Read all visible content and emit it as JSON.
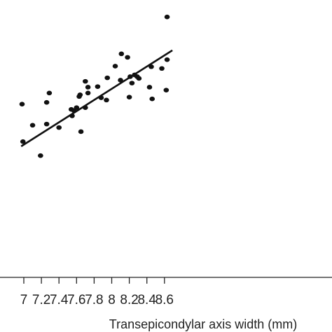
{
  "chart_data": {
    "type": "scatter",
    "title": "",
    "xlabel": "Transepicondylar axis width (mm)",
    "ylabel": "",
    "xlim": [
      6.97,
      8.69
    ],
    "x_ticks": [
      7,
      7.2,
      7.4,
      7.6,
      7.8,
      8,
      8.2,
      8.4,
      8.6
    ],
    "x_tick_labels": [
      "7",
      "7.2",
      "7.4",
      "7.6",
      "7.8",
      "8",
      "8.2",
      "8.4",
      "8.6"
    ],
    "grid": false,
    "legend": "none",
    "point_color": "#111111",
    "line_color": "#111111",
    "y_units_note": "",
    "ylim": [
      0,
      474
    ],
    "points": [
      {
        "x": 6.98,
        "y": 296
      },
      {
        "x": 6.99,
        "y": 232
      },
      {
        "x": 7.1,
        "y": 260
      },
      {
        "x": 7.19,
        "y": 208
      },
      {
        "x": 7.26,
        "y": 262
      },
      {
        "x": 7.26,
        "y": 299
      },
      {
        "x": 7.29,
        "y": 315
      },
      {
        "x": 7.4,
        "y": 256
      },
      {
        "x": 7.54,
        "y": 287
      },
      {
        "x": 7.55,
        "y": 276
      },
      {
        "x": 7.57,
        "y": 285
      },
      {
        "x": 7.6,
        "y": 290
      },
      {
        "x": 7.63,
        "y": 309
      },
      {
        "x": 7.64,
        "y": 312
      },
      {
        "x": 7.65,
        "y": 249
      },
      {
        "x": 7.7,
        "y": 335
      },
      {
        "x": 7.7,
        "y": 290
      },
      {
        "x": 7.73,
        "y": 325
      },
      {
        "x": 7.73,
        "y": 315
      },
      {
        "x": 7.84,
        "y": 326
      },
      {
        "x": 7.88,
        "y": 307
      },
      {
        "x": 7.94,
        "y": 303
      },
      {
        "x": 7.95,
        "y": 341
      },
      {
        "x": 8.04,
        "y": 361
      },
      {
        "x": 8.1,
        "y": 337
      },
      {
        "x": 8.11,
        "y": 382
      },
      {
        "x": 8.18,
        "y": 376
      },
      {
        "x": 8.2,
        "y": 308
      },
      {
        "x": 8.21,
        "y": 343
      },
      {
        "x": 8.23,
        "y": 332
      },
      {
        "x": 8.26,
        "y": 346
      },
      {
        "x": 8.29,
        "y": 343
      },
      {
        "x": 8.31,
        "y": 340
      },
      {
        "x": 8.43,
        "y": 325
      },
      {
        "x": 8.45,
        "y": 360
      },
      {
        "x": 8.46,
        "y": 305
      },
      {
        "x": 8.57,
        "y": 357
      },
      {
        "x": 8.62,
        "y": 320
      },
      {
        "x": 8.63,
        "y": 372
      },
      {
        "x": 8.63,
        "y": 445
      }
    ],
    "fit_line": {
      "x": [
        6.97,
        8.69
      ],
      "y": [
        224,
        388
      ]
    }
  }
}
